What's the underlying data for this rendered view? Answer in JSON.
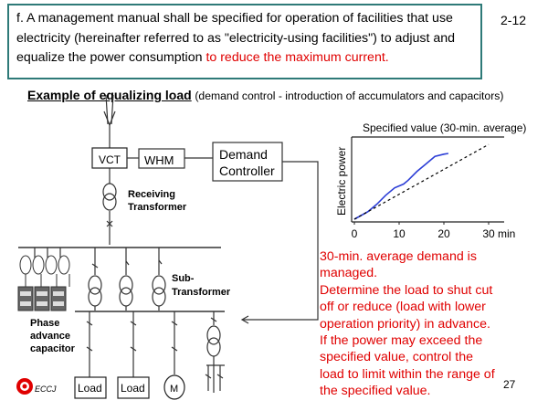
{
  "header": {
    "text_main": "f. A management manual shall be specified for operation of facilities that use electricity (hereinafter referred to as \"electricity-using facilities\")  to adjust and equalize the power consumption ",
    "text_red": "to reduce the maximum current.",
    "slide_code": "2-12"
  },
  "example": {
    "title": "Example of equalizing load",
    "subtitle": "(demand control - introduction of accumulators and capacitors)"
  },
  "diagram": {
    "vct": "VCT",
    "whm": "WHM",
    "demand_controller_line1": "Demand",
    "demand_controller_line2": "Controller",
    "receiving_transformer_line1": "Receiving",
    "receiving_transformer_line2": "Transformer",
    "sub_transformer_line1": "Sub-",
    "sub_transformer_line2": "Transformer",
    "capacitor_line1": "Phase",
    "capacitor_line2": "advance",
    "capacitor_line3": "capacitor",
    "load1": "Load",
    "load2": "Load",
    "motor": "M"
  },
  "chart_data": {
    "type": "line",
    "title": "Specified value (30-min. average)",
    "ylabel": "Electric power",
    "xlabel": "min",
    "x_ticks": [
      0,
      10,
      20,
      30
    ],
    "xlim": [
      0,
      30
    ],
    "series": [
      {
        "values": [
          [
            0,
            0
          ],
          [
            3,
            0.1
          ],
          [
            5,
            0.2
          ],
          [
            7,
            0.32
          ],
          [
            9,
            0.42
          ],
          [
            11,
            0.47
          ],
          [
            12,
            0.52
          ],
          [
            14,
            0.64
          ],
          [
            16,
            0.74
          ],
          [
            18,
            0.84
          ],
          [
            20,
            0.87
          ],
          [
            21,
            0.88
          ]
        ]
      },
      {
        "values": [
          [
            0,
            0
          ],
          [
            30,
            1
          ]
        ]
      }
    ],
    "reference_level": 1.1,
    "colors": {
      "series": "#2c3ed6",
      "dashed": "#000000"
    }
  },
  "description": {
    "lines": [
      "30-min. average demand is",
      "managed.",
      "Determine the load to shut cut",
      "off or reduce (load with lower",
      "operation priority) in advance.",
      "If the power may exceed the",
      "specified value, control the",
      "load to limit within the range of",
      "the specified value."
    ]
  },
  "footer": {
    "logo_text": "ECCJ",
    "page_number": "27"
  }
}
